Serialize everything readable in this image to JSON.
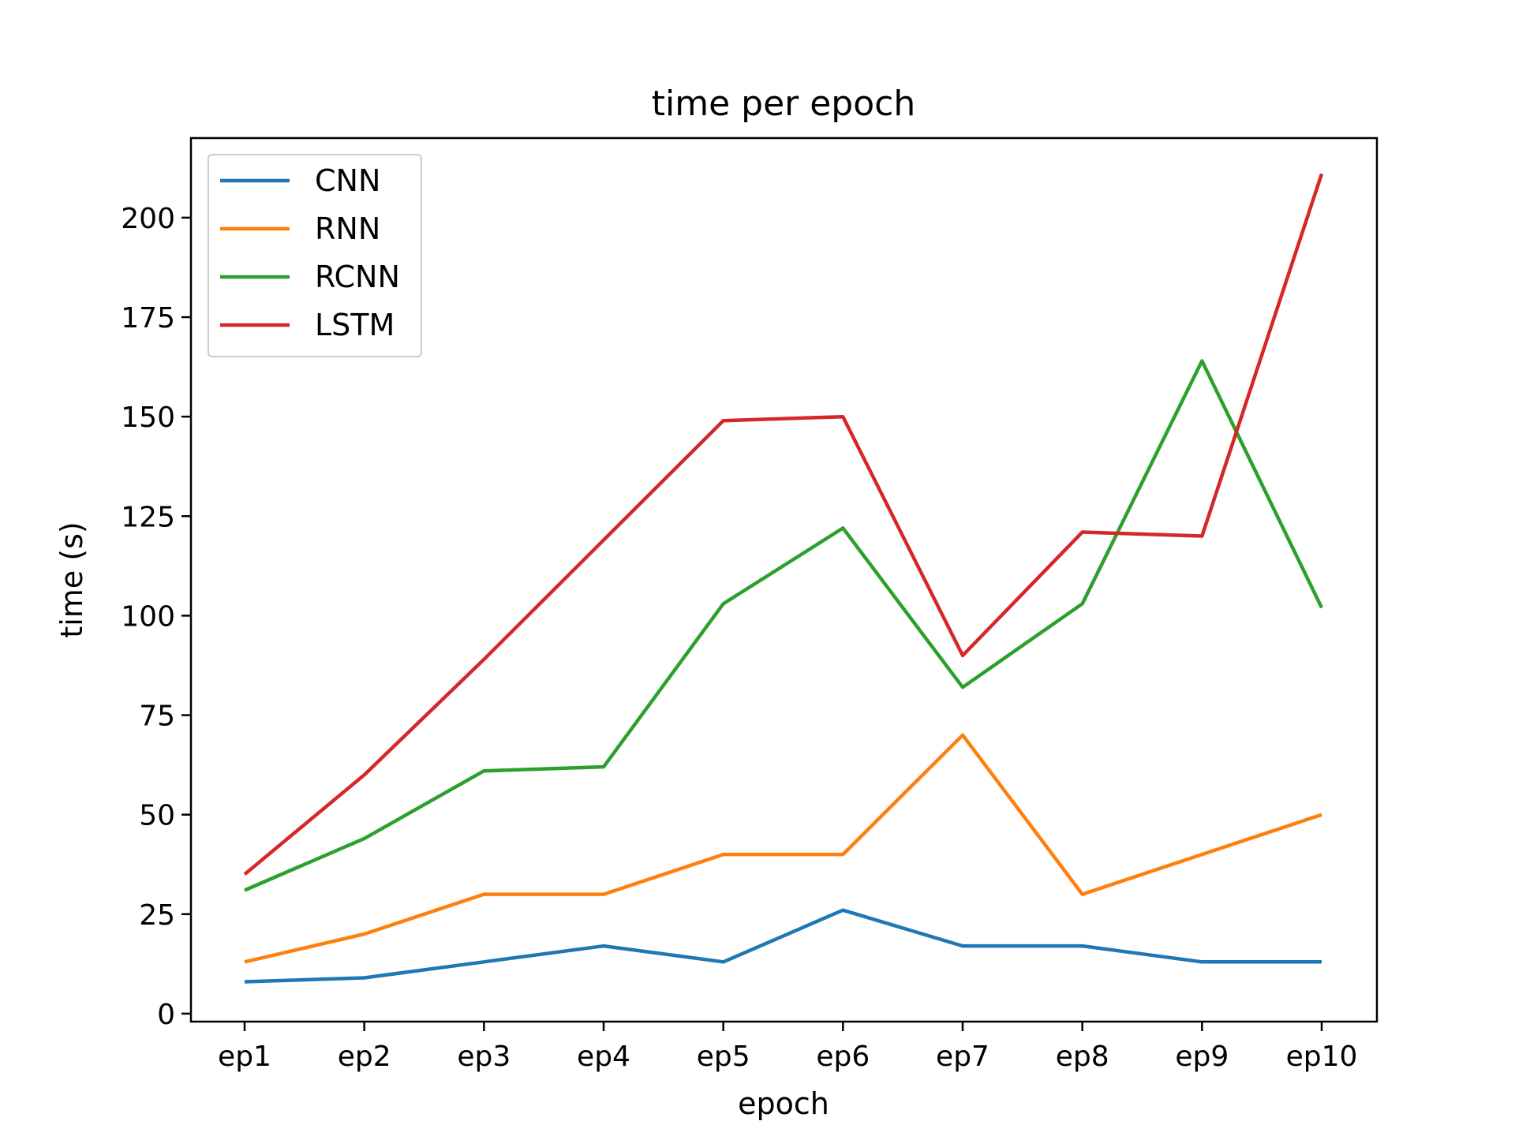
{
  "chart_data": {
    "type": "line",
    "title": "time per epoch",
    "xlabel": "epoch",
    "ylabel": "time (s)",
    "categories": [
      "ep1",
      "ep2",
      "ep3",
      "ep4",
      "ep5",
      "ep6",
      "ep7",
      "ep8",
      "ep9",
      "ep10"
    ],
    "ylim": [
      -2,
      220
    ],
    "yticks": [
      0,
      25,
      50,
      75,
      100,
      125,
      150,
      175,
      200
    ],
    "grid": false,
    "legend_position": "top-left",
    "series": [
      {
        "name": "CNN",
        "color": "#1f77b4",
        "values": [
          8,
          9,
          13,
          17,
          13,
          26,
          17,
          17,
          13,
          13
        ]
      },
      {
        "name": "RNN",
        "color": "#ff7f0e",
        "values": [
          13,
          20,
          30,
          30,
          40,
          40,
          70,
          30,
          40,
          50
        ]
      },
      {
        "name": "RCNN",
        "color": "#2ca02c",
        "values": [
          31,
          44,
          61,
          62,
          103,
          122,
          82,
          103,
          164,
          102
        ]
      },
      {
        "name": "LSTM",
        "color": "#d62728",
        "values": [
          35,
          60,
          89,
          119,
          149,
          150,
          90,
          121,
          120,
          211
        ]
      }
    ]
  }
}
